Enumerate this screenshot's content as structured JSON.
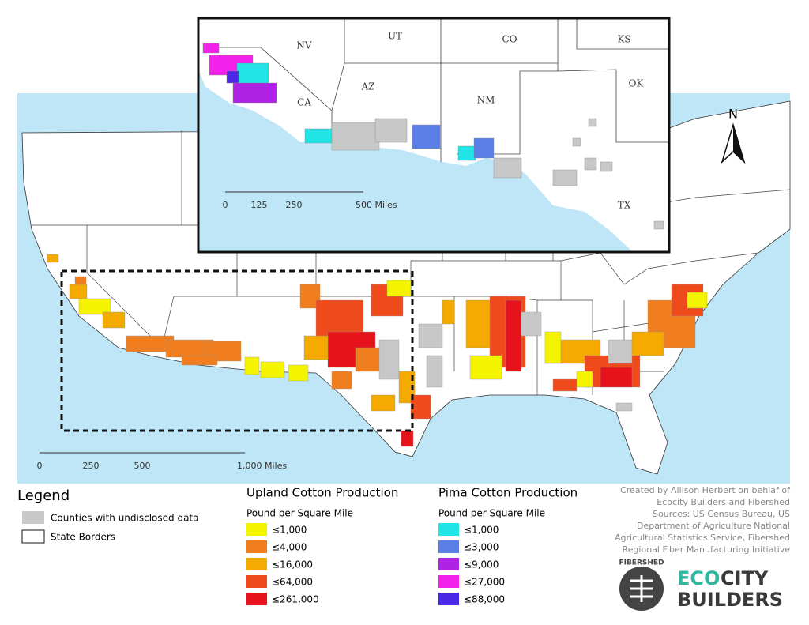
{
  "inset": {
    "state_labels": [
      "NV",
      "UT",
      "CO",
      "KS",
      "OK",
      "CA",
      "AZ",
      "NM",
      "TX"
    ],
    "scale_labels": [
      "0",
      "125",
      "250",
      "500 Miles"
    ]
  },
  "main": {
    "north": "N",
    "scale_labels": [
      "0",
      "250",
      "500",
      "1,000 Miles"
    ]
  },
  "legend": {
    "title": "Legend",
    "items": [
      "Counties with undisclosed data",
      "State Borders"
    ]
  },
  "upland": {
    "title": "Upland Cotton Production",
    "unit": "Pound per Square Mile",
    "classes": [
      {
        "label": "≤1,000",
        "color": "#f4f400"
      },
      {
        "label": "≤4,000",
        "color": "#f07d1e"
      },
      {
        "label": "≤16,000",
        "color": "#f5aa00"
      },
      {
        "label": "≤64,000",
        "color": "#ee4a1c"
      },
      {
        "label": "≤261,000",
        "color": "#e6121c"
      }
    ]
  },
  "pima": {
    "title": "Pima Cotton Production",
    "unit": "Pound per Square Mile",
    "classes": [
      {
        "label": "≤1,000",
        "color": "#22e4e6"
      },
      {
        "label": "≤3,000",
        "color": "#5a80e8"
      },
      {
        "label": "≤9,000",
        "color": "#b022e6"
      },
      {
        "label": "≤27,000",
        "color": "#f222ea"
      },
      {
        "label": "≤88,000",
        "color": "#4a28e6"
      }
    ]
  },
  "credits": [
    "Created by Allison Herbert on behlaf of",
    "Ecocity Builders and Fibershed",
    "Sources:  US Census Bureau, US",
    "Department of Agriculture National",
    "Agricultural Statistics Service, Fibershed",
    "Regional Fiber Manufacturing Initiative"
  ],
  "logos": {
    "fibershed": "FIBERSHED",
    "eco": "ECO",
    "city": "CITY",
    "builders": "BUILDERS"
  }
}
